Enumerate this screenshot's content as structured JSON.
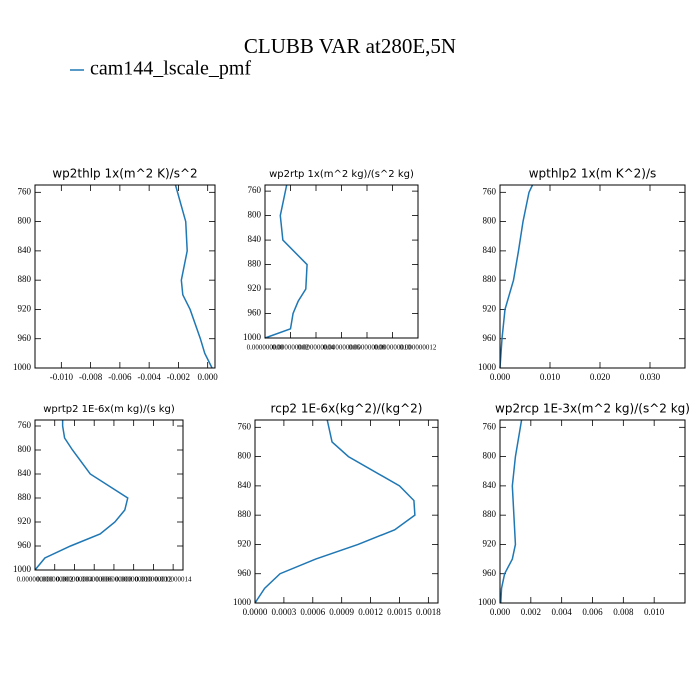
{
  "title": "CLUBB VAR at280E,5N",
  "legend": "cam144_lscale_pmf",
  "line_color": "#1f77b4",
  "chart_data": [
    {
      "type": "line",
      "title": "wp2thlp  1x(m^2 K)/s^2",
      "y": [
        750,
        800,
        840,
        880,
        900,
        920,
        960,
        980,
        1000
      ],
      "values": [
        -0.0022,
        -0.0015,
        -0.0014,
        -0.0018,
        -0.0017,
        -0.0012,
        -0.0005,
        -0.0002,
        0.0003
      ],
      "xlim": [
        -0.0118,
        0.0005
      ],
      "xticks": [
        {
          "value": -0.01,
          "label": "-0.010"
        },
        {
          "value": -0.008,
          "label": "-0.008"
        },
        {
          "value": -0.006,
          "label": "-0.006"
        },
        {
          "value": -0.004,
          "label": "-0.004"
        },
        {
          "value": -0.002,
          "label": "-0.002"
        },
        {
          "value": 0,
          "label": "0.000"
        }
      ],
      "ylim": [
        1000,
        750
      ],
      "yticks": [
        760,
        800,
        840,
        880,
        920,
        960,
        1000
      ]
    },
    {
      "type": "line",
      "title": "wp2rtp  1x(m^2 kg)/(s^2 kg)",
      "y": [
        750,
        760,
        800,
        840,
        880,
        920,
        940,
        960,
        985,
        1000
      ],
      "values": [
        1.7e-09,
        1.6e-09,
        1.2e-09,
        1.4e-09,
        3.3e-09,
        3.2e-09,
        2.6e-09,
        2.2e-09,
        2e-09,
        0
      ],
      "xlim": [
        0,
        1.2e-08
      ],
      "xticks": [
        {
          "value": 0,
          "label": "0.000000000"
        },
        {
          "value": 2e-09,
          "label": "0.000000002"
        },
        {
          "value": 4e-09,
          "label": "0.000000004"
        },
        {
          "value": 6e-09,
          "label": "0.000000006"
        },
        {
          "value": 8e-09,
          "label": "0.000000008"
        },
        {
          "value": 1e-08,
          "label": "0.000000010"
        },
        {
          "value": 1.2e-08,
          "label": "0.000000012"
        }
      ],
      "ylim": [
        1000,
        750
      ],
      "yticks": [
        760,
        800,
        840,
        880,
        920,
        960,
        1000
      ]
    },
    {
      "type": "line",
      "title": "wpthlp2  1x(m K^2)/s",
      "y": [
        750,
        760,
        800,
        840,
        880,
        920,
        960,
        1000
      ],
      "values": [
        0.0065,
        0.0058,
        0.0046,
        0.0037,
        0.0027,
        0.001,
        0.0004,
        0
      ],
      "xlim": [
        0,
        0.037
      ],
      "xticks": [
        {
          "value": 0,
          "label": "0.000"
        },
        {
          "value": 0.01,
          "label": "0.010"
        },
        {
          "value": 0.02,
          "label": "0.020"
        },
        {
          "value": 0.03,
          "label": "0.030"
        }
      ],
      "ylim": [
        1000,
        750
      ],
      "yticks": [
        760,
        800,
        840,
        880,
        920,
        960,
        1000
      ]
    },
    {
      "type": "line",
      "title": "wprtp2  1E-6x(m kg)/(s kg)",
      "y": [
        750,
        760,
        780,
        800,
        840,
        880,
        900,
        920,
        940,
        960,
        980,
        1000
      ],
      "values": [
        2.8e-09,
        2.8e-09,
        3e-09,
        3.8e-09,
        5.6e-09,
        9.4e-09,
        9.1e-09,
        8.1e-09,
        6.6e-09,
        3.6e-09,
        1e-09,
        0
      ],
      "xlim": [
        0,
        1.5e-08
      ],
      "xticks": [
        {
          "value": 0,
          "label": "0.000000000"
        },
        {
          "value": 2e-09,
          "label": "0.000000002"
        },
        {
          "value": 4e-09,
          "label": "0.000000004"
        },
        {
          "value": 6e-09,
          "label": "0.000000006"
        },
        {
          "value": 8e-09,
          "label": "0.000000008"
        },
        {
          "value": 1e-08,
          "label": "0.000000010"
        },
        {
          "value": 1.2e-08,
          "label": "0.000000012"
        },
        {
          "value": 1.4e-08,
          "label": "0.000000014"
        }
      ],
      "ylim": [
        1000,
        750
      ],
      "yticks": [
        760,
        800,
        840,
        880,
        920,
        960,
        1000
      ]
    },
    {
      "type": "line",
      "title": "rcp2  1E-6x(kg^2)/(kg^2)",
      "y": [
        750,
        780,
        800,
        840,
        860,
        880,
        900,
        920,
        940,
        960,
        980,
        1000
      ],
      "values": [
        0.00075,
        0.0008,
        0.00097,
        0.0015,
        0.00165,
        0.00166,
        0.00145,
        0.00107,
        0.00063,
        0.00026,
        0.0001,
        0
      ],
      "xlim": [
        0,
        0.0019
      ],
      "xticks": [
        {
          "value": 0,
          "label": "0.0000"
        },
        {
          "value": 0.0003,
          "label": "0.0003"
        },
        {
          "value": 0.0006,
          "label": "0.0006"
        },
        {
          "value": 0.0009,
          "label": "0.0009"
        },
        {
          "value": 0.0012,
          "label": "0.0012"
        },
        {
          "value": 0.0015,
          "label": "0.0015"
        },
        {
          "value": 0.0018,
          "label": "0.0018"
        }
      ],
      "ylim": [
        1000,
        750
      ],
      "yticks": [
        760,
        800,
        840,
        880,
        920,
        960,
        1000
      ]
    },
    {
      "type": "line",
      "title": "wp2rcp  1E-3x(m^2 kg)/(s^2 kg)",
      "y": [
        750,
        800,
        840,
        880,
        920,
        940,
        960,
        980,
        1000
      ],
      "values": [
        0.0014,
        0.001,
        0.0008,
        0.0009,
        0.001,
        0.0008,
        0.0003,
        0.0001,
        5e-05
      ],
      "xlim": [
        0,
        0.012
      ],
      "xticks": [
        {
          "value": 0,
          "label": "0.000"
        },
        {
          "value": 0.002,
          "label": "0.002"
        },
        {
          "value": 0.004,
          "label": "0.004"
        },
        {
          "value": 0.006,
          "label": "0.006"
        },
        {
          "value": 0.008,
          "label": "0.008"
        },
        {
          "value": 0.01,
          "label": "0.010"
        }
      ],
      "ylim": [
        1000,
        750
      ],
      "yticks": [
        760,
        800,
        840,
        880,
        920,
        960,
        1000
      ]
    }
  ]
}
